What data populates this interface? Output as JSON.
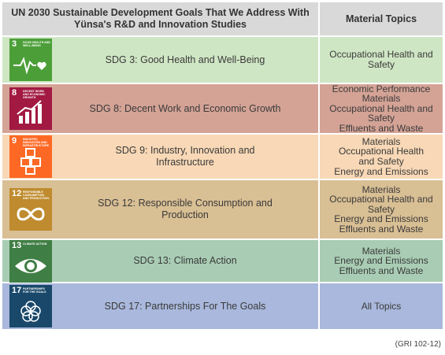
{
  "header": {
    "left_line1": "UN 2030 Sustainable Development Goals That We Address With",
    "left_line2": "Yünsa's R&D and Innovation Studies",
    "right": "Material Topics"
  },
  "rows": [
    {
      "number": "3",
      "icon_caption": "Good health and well-being",
      "icon": "heartbeat-icon",
      "label_line1": "SDG 3: Good Health and Well-Being",
      "label_line2": "",
      "topics": [
        "Occupational Health and",
        "Safety"
      ],
      "row_color": "#cfe6c4",
      "icon_color": "#4c9f38"
    },
    {
      "number": "8",
      "icon_caption": "Decent work and economic growth",
      "icon": "growth-chart-icon",
      "label_line1": "SDG 8: Decent Work and Economic Growth",
      "label_line2": "",
      "topics": [
        "Economic Performance",
        "Materials",
        "Occupational Health and",
        "Safety",
        "Effluents and Waste"
      ],
      "row_color": "#d4a396",
      "icon_color": "#a21942"
    },
    {
      "number": "9",
      "icon_caption": "Industry, innovation and infrastructure",
      "icon": "cubes-icon",
      "label_line1": "SDG 9: Industry, Innovation and",
      "label_line2": "Infrastructure",
      "topics": [
        "Materials",
        "Occupational Health",
        "and Safety",
        "Energy and Emissions"
      ],
      "row_color": "#f8d8b6",
      "icon_color": "#fd6925"
    },
    {
      "number": "12",
      "icon_caption": "Responsible consumption and production",
      "icon": "infinity-icon",
      "label_line1": "SDG 12: Responsible Consumption and",
      "label_line2": "Production",
      "topics": [
        "Materials",
        "Occupational Health and",
        "Safety",
        "Energy and Emissions",
        "Effluents and Waste"
      ],
      "row_color": "#d9bf94",
      "icon_color": "#bf8b2e"
    },
    {
      "number": "13",
      "icon_caption": "Climate action",
      "icon": "eye-globe-icon",
      "label_line1": "SDG 13: Climate Action",
      "label_line2": "",
      "topics": [
        "Materials",
        "Energy and Emissions",
        "Effluents and Waste"
      ],
      "row_color": "#a9cdb4",
      "icon_color": "#3f7e44"
    },
    {
      "number": "17",
      "icon_caption": "Partnerships for the goals",
      "icon": "flower-rings-icon",
      "label_line1": "SDG 17: Partnerships For The Goals",
      "label_line2": "",
      "topics": [
        "All Topics"
      ],
      "row_color": "#a9b8dc",
      "icon_color": "#19486a"
    }
  ],
  "footer": "(GRI 102-12)"
}
